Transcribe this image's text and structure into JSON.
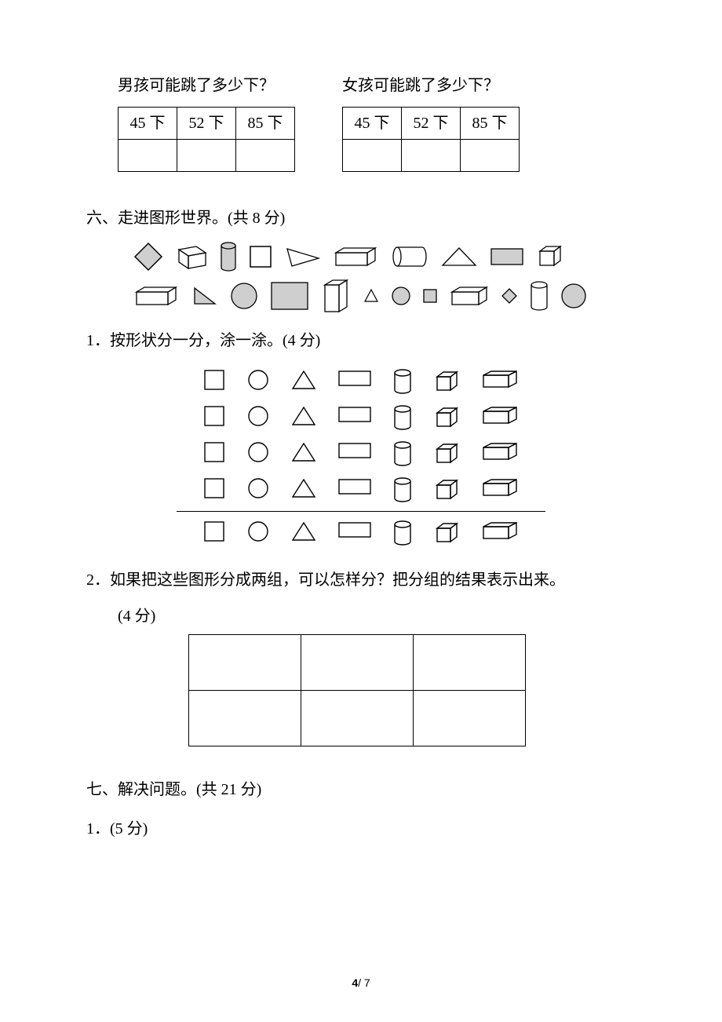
{
  "top": {
    "boy": {
      "question": "男孩可能跳了多少下？",
      "headers": [
        "45 下",
        "52 下",
        "85 下"
      ]
    },
    "girl": {
      "question": "女孩可能跳了多少下？",
      "headers": [
        "45 下",
        "52 下",
        "85 下"
      ]
    }
  },
  "section6": {
    "heading": "六、走进图形世界。(共 8 分)",
    "q1": "1．按形状分一分，涂一涂。(4 分)",
    "q2_line1": "2．如果把这些图形分成两组，可以怎样分？把分组的结果表示出来。",
    "q2_line2": "(4 分)"
  },
  "section7": {
    "heading": "七、解决问题。(共 21 分)",
    "q1": "1．(5 分)"
  },
  "page_number": {
    "current": "4",
    "total": "7",
    "sep": "/ "
  },
  "colors": {
    "stroke": "#000000",
    "fill_gray": "#cfcfcf",
    "fill_none": "#ffffff"
  },
  "shapes_grid": {
    "cols": 7,
    "rows": 5,
    "column_types": [
      "square",
      "circle",
      "triangle",
      "rect",
      "cylinder",
      "cube",
      "cuboid"
    ]
  }
}
